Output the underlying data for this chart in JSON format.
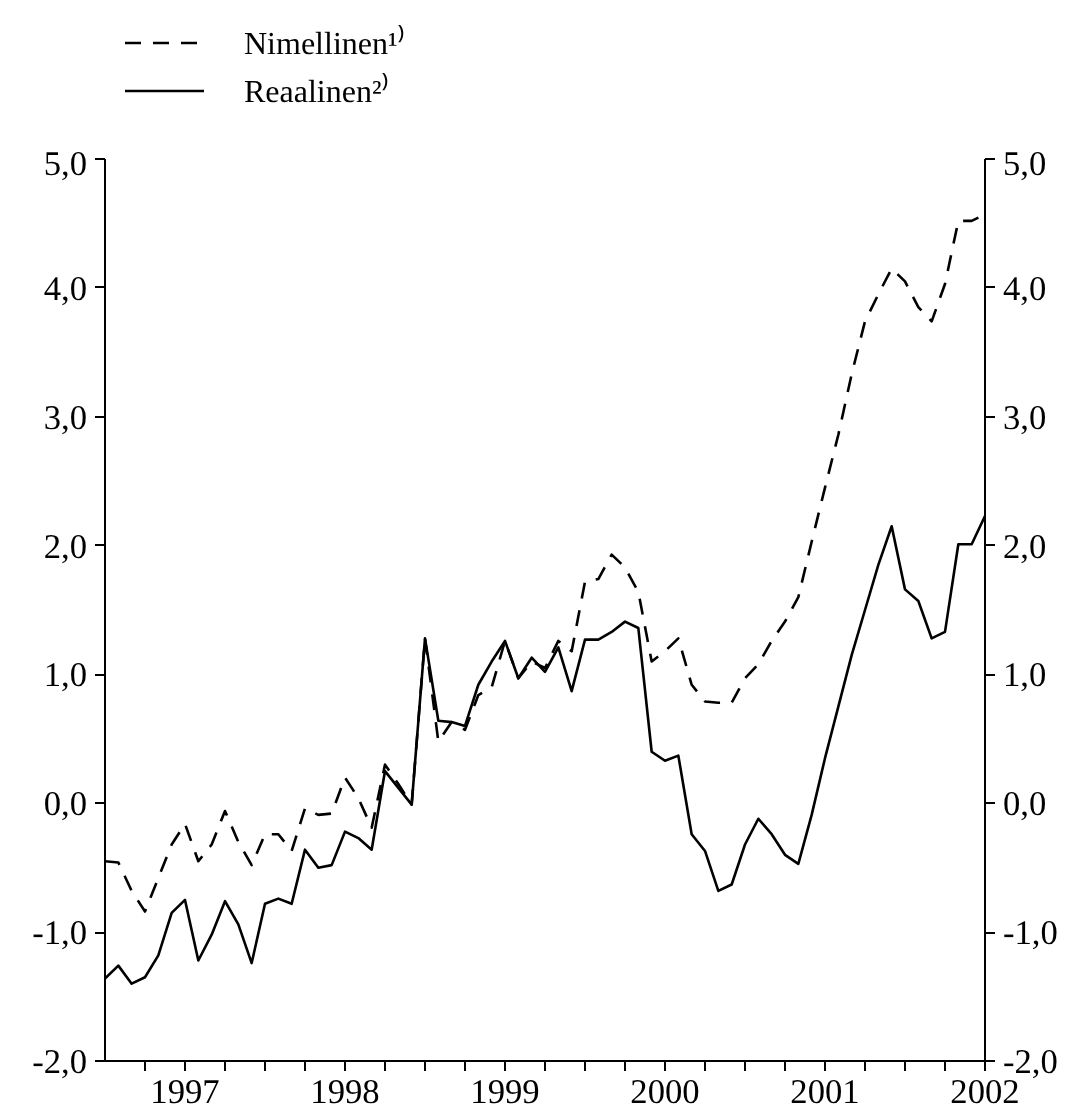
{
  "chart_data": {
    "type": "line",
    "x": [
      "1997-01",
      "1997-02",
      "1997-03",
      "1997-04",
      "1997-05",
      "1997-06",
      "1997-07",
      "1997-08",
      "1997-09",
      "1997-10",
      "1997-11",
      "1997-12",
      "1998-01",
      "1998-02",
      "1998-03",
      "1998-04",
      "1998-05",
      "1998-06",
      "1998-07",
      "1998-08",
      "1998-09",
      "1998-10",
      "1998-11",
      "1998-12",
      "1999-01",
      "1999-02",
      "1999-03",
      "1999-04",
      "1999-05",
      "1999-06",
      "1999-07",
      "1999-08",
      "1999-09",
      "1999-10",
      "1999-11",
      "1999-12",
      "2000-01",
      "2000-02",
      "2000-03",
      "2000-04",
      "2000-05",
      "2000-06",
      "2000-07",
      "2000-08",
      "2000-09",
      "2000-10",
      "2000-11",
      "2000-12",
      "2001-01",
      "2001-02",
      "2001-03",
      "2001-04",
      "2001-05",
      "2001-06",
      "2001-07",
      "2001-08",
      "2001-09",
      "2001-10",
      "2001-11",
      "2001-12",
      "2002-01",
      "2002-02",
      "2002-03",
      "2002-04",
      "2002-05",
      "2002-06",
      "2002-07"
    ],
    "series": [
      {
        "name": "Nimellinen¹⁾",
        "color": "#000000",
        "line_style": "dashed",
        "values": [
          -0.45,
          -0.46,
          -0.68,
          -0.84,
          -0.58,
          -0.32,
          -0.16,
          -0.45,
          -0.32,
          -0.06,
          -0.3,
          -0.48,
          -0.24,
          -0.24,
          -0.37,
          -0.04,
          -0.09,
          -0.08,
          0.2,
          0.04,
          -0.19,
          0.3,
          0.15,
          -0.01,
          1.28,
          0.48,
          0.63,
          0.57,
          0.84,
          0.9,
          1.26,
          0.97,
          1.1,
          1.05,
          1.26,
          1.18,
          1.72,
          1.74,
          1.93,
          1.83,
          1.64,
          1.1,
          1.18,
          1.28,
          0.92,
          0.79,
          0.78,
          0.78,
          0.97,
          1.08,
          1.26,
          1.41,
          1.6,
          2.03,
          2.45,
          2.86,
          3.33,
          3.74,
          3.95,
          4.15,
          4.05,
          3.85,
          3.74,
          4.03,
          4.52,
          4.52,
          4.57
        ]
      },
      {
        "name": "Reaalinen²⁾",
        "color": "#000000",
        "line_style": "solid",
        "values": [
          -1.36,
          -1.26,
          -1.4,
          -1.35,
          -1.18,
          -0.85,
          -0.75,
          -1.22,
          -1.02,
          -0.76,
          -0.94,
          -1.24,
          -0.78,
          -0.74,
          -0.78,
          -0.36,
          -0.5,
          -0.48,
          -0.22,
          -0.27,
          -0.36,
          0.25,
          0.12,
          -0.01,
          1.28,
          0.64,
          0.63,
          0.6,
          0.92,
          1.1,
          1.26,
          0.97,
          1.13,
          1.02,
          1.21,
          0.87,
          1.27,
          1.27,
          1.33,
          1.41,
          1.36,
          0.4,
          0.33,
          0.37,
          -0.24,
          -0.37,
          -0.68,
          -0.63,
          -0.32,
          -0.12,
          -0.24,
          -0.4,
          -0.47,
          -0.09,
          0.35,
          0.75,
          1.15,
          1.5,
          1.85,
          2.15,
          1.66,
          1.57,
          1.28,
          1.33,
          2.01,
          2.01,
          2.23
        ]
      }
    ],
    "xlim": [
      "1997-01",
      "2002-07"
    ],
    "xticks": [
      {
        "value": "1997-04",
        "label": null
      },
      {
        "value": "1997-07",
        "label": "1997"
      },
      {
        "value": "1997-10",
        "label": null
      },
      {
        "value": "1998-01",
        "label": null
      },
      {
        "value": "1998-04",
        "label": null
      },
      {
        "value": "1998-07",
        "label": "1998"
      },
      {
        "value": "1998-10",
        "label": null
      },
      {
        "value": "1999-01",
        "label": null
      },
      {
        "value": "1999-04",
        "label": null
      },
      {
        "value": "1999-07",
        "label": "1999"
      },
      {
        "value": "1999-10",
        "label": null
      },
      {
        "value": "2000-01",
        "label": null
      },
      {
        "value": "2000-04",
        "label": null
      },
      {
        "value": "2000-07",
        "label": "2000"
      },
      {
        "value": "2000-10",
        "label": null
      },
      {
        "value": "2001-01",
        "label": null
      },
      {
        "value": "2001-04",
        "label": null
      },
      {
        "value": "2001-07",
        "label": "2001"
      },
      {
        "value": "2001-10",
        "label": null
      },
      {
        "value": "2002-01",
        "label": null
      },
      {
        "value": "2002-04",
        "label": null
      },
      {
        "value": "2002-07",
        "label": "2002"
      }
    ],
    "ylim": [
      -2,
      5
    ],
    "yticks": [
      {
        "value": -2,
        "label": "-2,0"
      },
      {
        "value": -1,
        "label": "-1,0"
      },
      {
        "value": 0,
        "label": "0,0"
      },
      {
        "value": 1,
        "label": "1,0"
      },
      {
        "value": 2,
        "label": "2,0"
      },
      {
        "value": 3,
        "label": "3,0"
      },
      {
        "value": 4,
        "label": "4,0"
      },
      {
        "value": 5,
        "label": "5,0"
      }
    ],
    "y2lim": [
      -2,
      5
    ],
    "y2ticks": [
      {
        "value": -2,
        "label": "-2,0"
      },
      {
        "value": -1,
        "label": "-1,0"
      },
      {
        "value": 0,
        "label": "0,0"
      },
      {
        "value": 1,
        "label": "1,0"
      },
      {
        "value": 2,
        "label": "2,0"
      },
      {
        "value": 3,
        "label": "3,0"
      },
      {
        "value": 4,
        "label": "4,0"
      },
      {
        "value": 5,
        "label": "5,0"
      }
    ],
    "grid": false,
    "legend": "top left",
    "marker": "none"
  }
}
